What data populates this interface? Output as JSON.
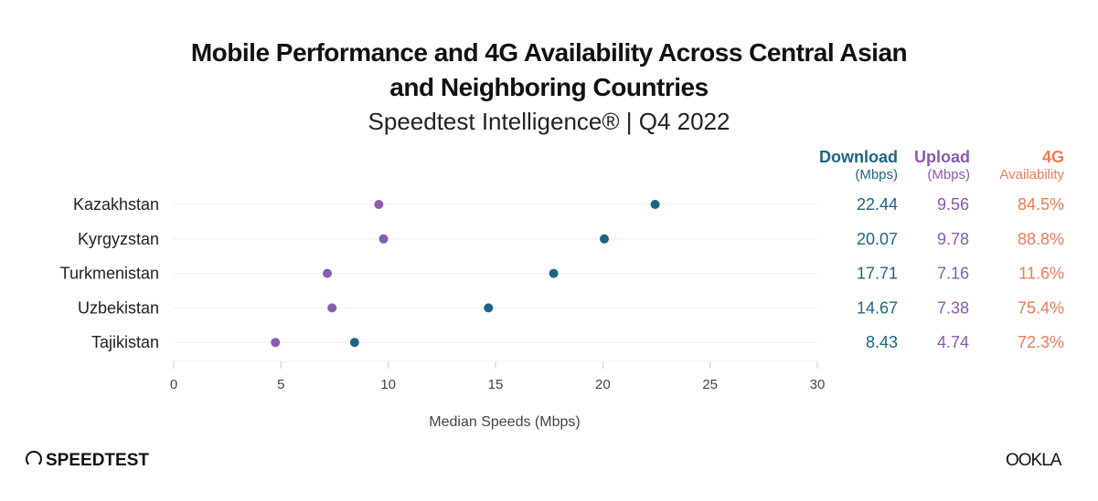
{
  "title_line1": "Mobile Performance and 4G Availability Across Central Asian",
  "title_line2": "and Neighboring Countries",
  "subtitle": "Speedtest Intelligence® | Q4 2022",
  "colors": {
    "download": "#1d6585",
    "upload": "#8a5bb0",
    "availability": "#f07a56"
  },
  "columns": {
    "download": {
      "label": "Download",
      "unit": "(Mbps)"
    },
    "upload": {
      "label": "Upload",
      "unit": "(Mbps)"
    },
    "availability": {
      "label": "4G",
      "unit": "Availability"
    }
  },
  "chart_data": {
    "type": "scatter",
    "xlabel": "Median Speeds (Mbps)",
    "xlim": [
      0,
      30
    ],
    "xticks": [
      "0",
      "5",
      "10",
      "15",
      "20",
      "25",
      "30"
    ],
    "grid": true,
    "categories": [
      "Kazakhstan",
      "Kyrgyzstan",
      "Turkmenistan",
      "Uzbekistan",
      "Tajikistan"
    ],
    "series": [
      {
        "name": "Download",
        "values": [
          22.44,
          20.07,
          17.71,
          14.67,
          8.43
        ],
        "labels": [
          "22.44",
          "20.07",
          "17.71",
          "14.67",
          "8.43"
        ]
      },
      {
        "name": "Upload",
        "values": [
          9.56,
          9.78,
          7.16,
          7.38,
          4.74
        ],
        "labels": [
          "9.56",
          "9.78",
          "7.16",
          "7.38",
          "4.74"
        ]
      }
    ],
    "availability": [
      "84.5%",
      "88.8%",
      "11.6%",
      "75.4%",
      "72.3%"
    ]
  },
  "logos": {
    "left": "SPEEDTEST",
    "right": "OOKLA"
  }
}
